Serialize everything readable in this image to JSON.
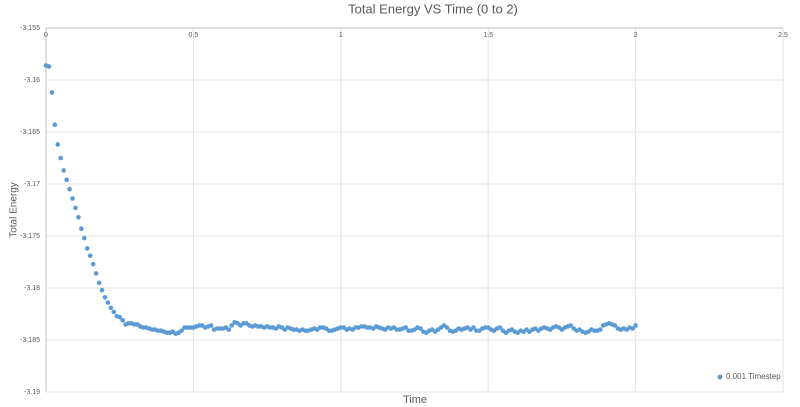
{
  "chart_data": {
    "type": "scatter",
    "title": "Total Energy VS Time (0 to 2)",
    "x_label": "Time",
    "y_label": "Total Energy",
    "xlim": [
      0,
      2.5
    ],
    "xticks": [
      0,
      0.5,
      1,
      1.5,
      2,
      2.5
    ],
    "ylim": [
      -3.19,
      -3.155
    ],
    "yticks": [
      -3.155,
      -3.16,
      -3.165,
      -3.17,
      -3.175,
      -3.18,
      -3.185,
      -3.19
    ],
    "grid": true,
    "legend": "bottom-right",
    "series": [
      {
        "name": "0.001 Timestep",
        "color": "#5b9bd5",
        "x": [
          0,
          0.01,
          0.02,
          0.03,
          0.04,
          0.05,
          0.06,
          0.07,
          0.08,
          0.09,
          0.1,
          0.11,
          0.12,
          0.13,
          0.14,
          0.15,
          0.16,
          0.17,
          0.18,
          0.19,
          0.2,
          0.21,
          0.22,
          0.23,
          0.24,
          0.25,
          0.26,
          0.27,
          0.28,
          0.29,
          0.3,
          0.31,
          0.32,
          0.33,
          0.34,
          0.35,
          0.36,
          0.37,
          0.38,
          0.39,
          0.4,
          0.41,
          0.42,
          0.43,
          0.44,
          0.45,
          0.46,
          0.47,
          0.48,
          0.49,
          0.5,
          0.51,
          0.52,
          0.53,
          0.54,
          0.55,
          0.56,
          0.57,
          0.58,
          0.59,
          0.6,
          0.61,
          0.62,
          0.63,
          0.64,
          0.65,
          0.66,
          0.67,
          0.68,
          0.69,
          0.7,
          0.71,
          0.72,
          0.73,
          0.74,
          0.75,
          0.76,
          0.77,
          0.78,
          0.79,
          0.8,
          0.81,
          0.82,
          0.83,
          0.84,
          0.85,
          0.86,
          0.87,
          0.88,
          0.89,
          0.9,
          0.91,
          0.92,
          0.93,
          0.94,
          0.95,
          0.96,
          0.97,
          0.98,
          0.99,
          1,
          1.01,
          1.02,
          1.03,
          1.04,
          1.05,
          1.06,
          1.07,
          1.08,
          1.09,
          1.1,
          1.11,
          1.12,
          1.13,
          1.14,
          1.15,
          1.16,
          1.17,
          1.18,
          1.19,
          1.2,
          1.21,
          1.22,
          1.23,
          1.24,
          1.25,
          1.26,
          1.27,
          1.28,
          1.29,
          1.3,
          1.31,
          1.32,
          1.33,
          1.34,
          1.35,
          1.36,
          1.37,
          1.38,
          1.39,
          1.4,
          1.41,
          1.42,
          1.43,
          1.44,
          1.45,
          1.46,
          1.47,
          1.48,
          1.49,
          1.5,
          1.51,
          1.52,
          1.53,
          1.54,
          1.55,
          1.56,
          1.57,
          1.58,
          1.59,
          1.6,
          1.61,
          1.62,
          1.63,
          1.64,
          1.65,
          1.66,
          1.67,
          1.68,
          1.69,
          1.7,
          1.71,
          1.72,
          1.73,
          1.74,
          1.75,
          1.76,
          1.77,
          1.78,
          1.79,
          1.8,
          1.81,
          1.82,
          1.83,
          1.84,
          1.85,
          1.86,
          1.87,
          1.88,
          1.89,
          1.9,
          1.91,
          1.92,
          1.93,
          1.94,
          1.95,
          1.96,
          1.97,
          1.98,
          1.99,
          2
        ],
        "values": [
          -3.1586,
          -3.1587,
          -3.1612,
          -3.1643,
          -3.1662,
          -3.1675,
          -3.1687,
          -3.1696,
          -3.1705,
          -3.1714,
          -3.1723,
          -3.1732,
          -3.1743,
          -3.1752,
          -3.1762,
          -3.1769,
          -3.1777,
          -3.1786,
          -3.1795,
          -3.1802,
          -3.1809,
          -3.1814,
          -3.1819,
          -3.1823,
          -3.1827,
          -3.1828,
          -3.1831,
          -3.1835,
          -3.1834,
          -3.1834,
          -3.1835,
          -3.1835,
          -3.1837,
          -3.1838,
          -3.1838,
          -3.1839,
          -3.184,
          -3.184,
          -3.1841,
          -3.1841,
          -3.1842,
          -3.1843,
          -3.1843,
          -3.1842,
          -3.1844,
          -3.1843,
          -3.1841,
          -3.1838,
          -3.1838,
          -3.1838,
          -3.1838,
          -3.1837,
          -3.1836,
          -3.1836,
          -3.1838,
          -3.1837,
          -3.1836,
          -3.184,
          -3.1839,
          -3.1839,
          -3.1839,
          -3.1838,
          -3.184,
          -3.1836,
          -3.1833,
          -3.1834,
          -3.1836,
          -3.1834,
          -3.1834,
          -3.1836,
          -3.1837,
          -3.1836,
          -3.1837,
          -3.1837,
          -3.1838,
          -3.1837,
          -3.1838,
          -3.1838,
          -3.1839,
          -3.1837,
          -3.1838,
          -3.184,
          -3.1838,
          -3.1839,
          -3.184,
          -3.184,
          -3.1841,
          -3.184,
          -3.1841,
          -3.1841,
          -3.184,
          -3.1839,
          -3.184,
          -3.1838,
          -3.1838,
          -3.1839,
          -3.1841,
          -3.1841,
          -3.184,
          -3.1839,
          -3.1838,
          -3.1838,
          -3.184,
          -3.1839,
          -3.184,
          -3.1838,
          -3.1838,
          -3.1837,
          -3.1837,
          -3.1838,
          -3.1838,
          -3.1839,
          -3.1837,
          -3.1838,
          -3.1839,
          -3.184,
          -3.1838,
          -3.1839,
          -3.1838,
          -3.184,
          -3.184,
          -3.1839,
          -3.1838,
          -3.1841,
          -3.1841,
          -3.184,
          -3.1838,
          -3.1839,
          -3.1842,
          -3.1843,
          -3.1841,
          -3.184,
          -3.1842,
          -3.184,
          -3.1838,
          -3.1836,
          -3.1838,
          -3.1841,
          -3.1842,
          -3.1841,
          -3.1839,
          -3.184,
          -3.1839,
          -3.1838,
          -3.184,
          -3.1838,
          -3.1841,
          -3.1841,
          -3.1839,
          -3.1838,
          -3.1838,
          -3.184,
          -3.1841,
          -3.1839,
          -3.1838,
          -3.1841,
          -3.1843,
          -3.1841,
          -3.184,
          -3.1842,
          -3.1843,
          -3.1841,
          -3.1842,
          -3.184,
          -3.1842,
          -3.184,
          -3.1839,
          -3.1841,
          -3.1839,
          -3.1838,
          -3.1839,
          -3.184,
          -3.1838,
          -3.1837,
          -3.1838,
          -3.184,
          -3.1838,
          -3.1837,
          -3.1836,
          -3.1839,
          -3.1841,
          -3.184,
          -3.1842,
          -3.1843,
          -3.1842,
          -3.184,
          -3.1841,
          -3.1841,
          -3.184,
          -3.1836,
          -3.1835,
          -3.1834,
          -3.1835,
          -3.1836,
          -3.1839,
          -3.184,
          -3.1839,
          -3.184,
          -3.1838,
          -3.1839,
          -3.1836
        ]
      }
    ]
  }
}
